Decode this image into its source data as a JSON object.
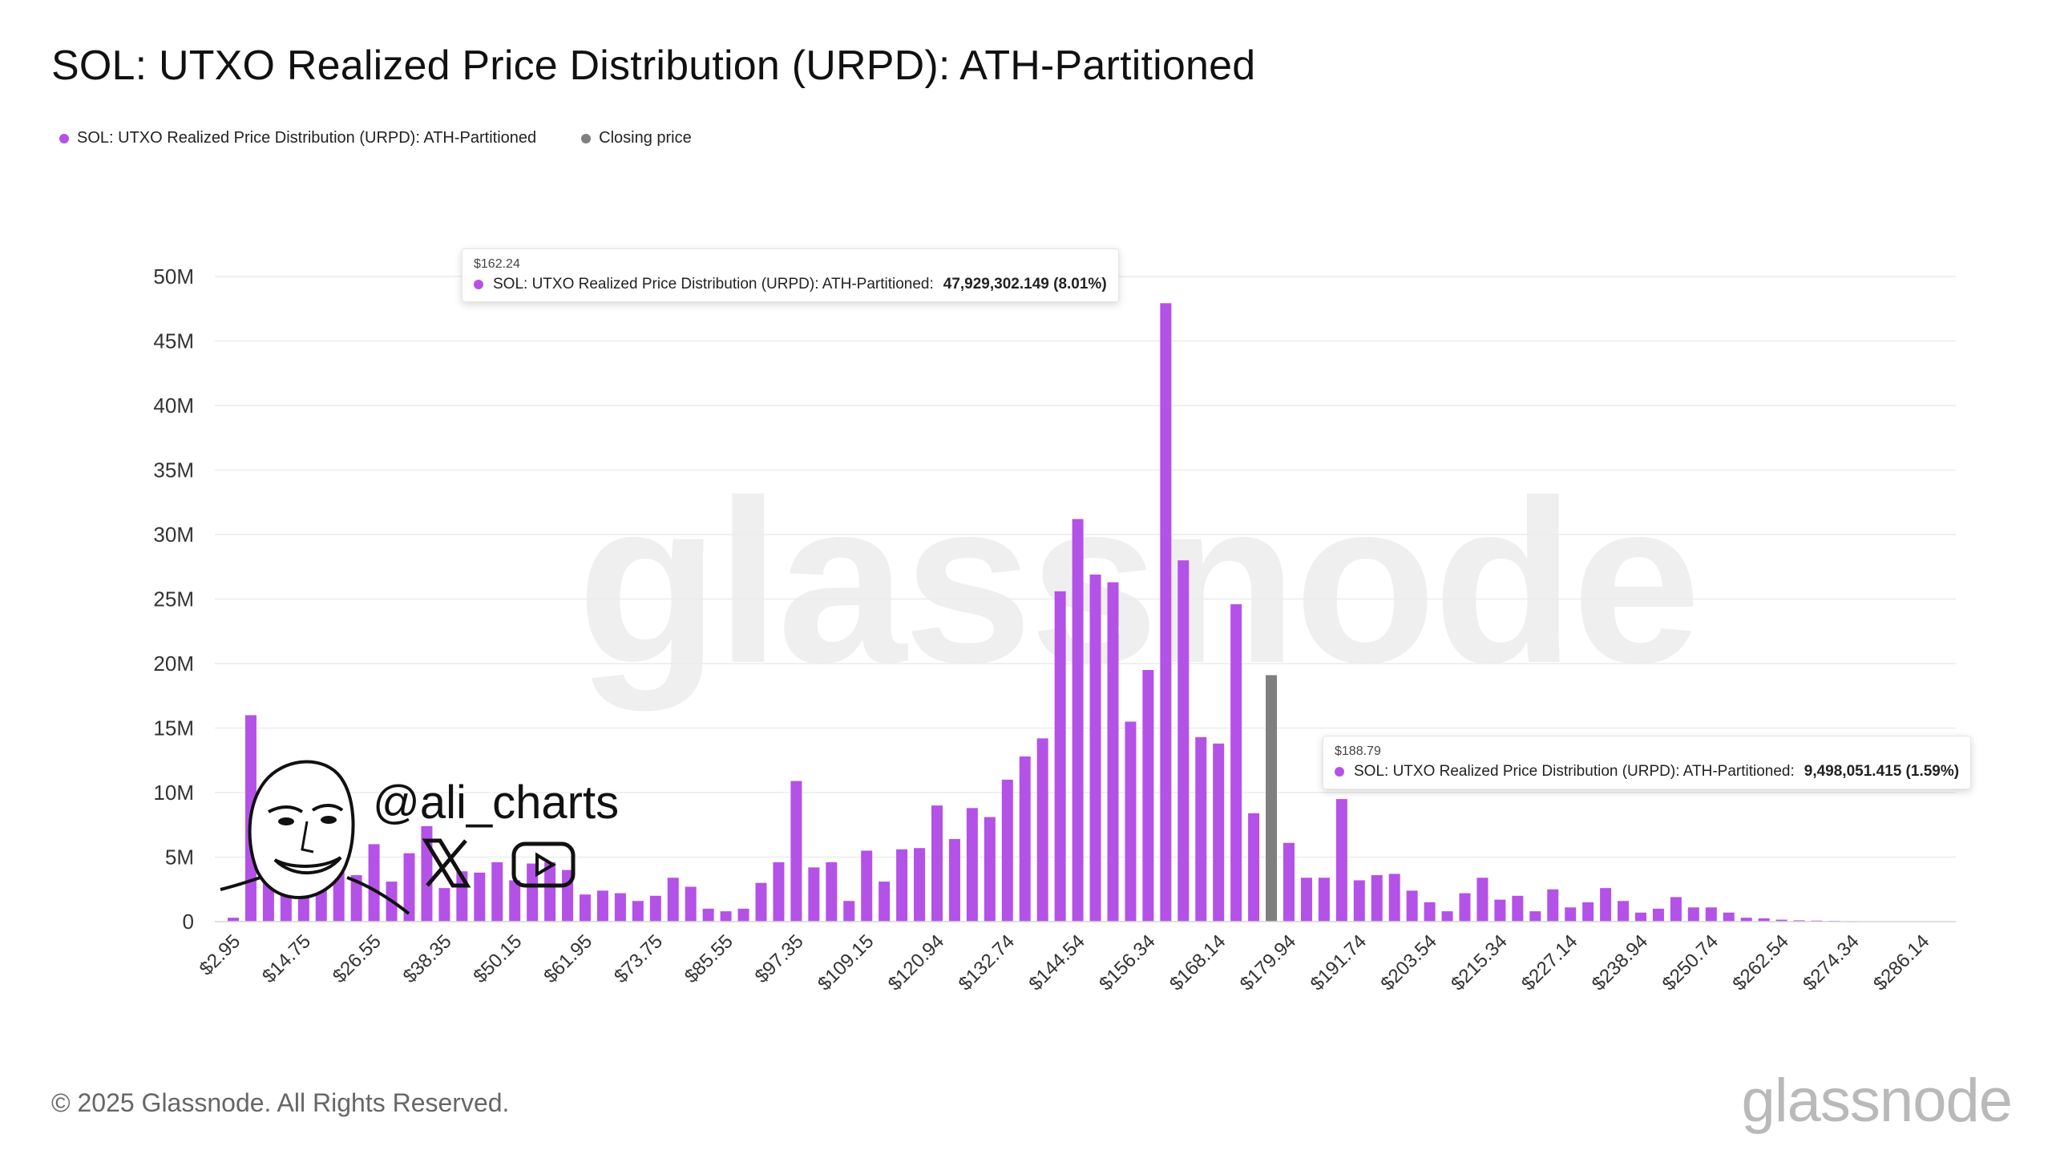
{
  "title": "SOL: UTXO Realized Price Distribution (URPD): ATH-Partitioned",
  "legend": [
    {
      "label": "SOL: UTXO Realized Price Distribution (URPD): ATH-Partitioned",
      "color": "#b452e8"
    },
    {
      "label": "Closing price",
      "color": "#7f7f7f"
    }
  ],
  "tooltips": [
    {
      "price": "$162.24",
      "series": "SOL: UTXO Realized Price Distribution (URPD): ATH-Partitioned:",
      "value": "47,929,302.149 (8.01%)"
    },
    {
      "price": "$188.79",
      "series": "SOL: UTXO Realized Price Distribution (URPD): ATH-Partitioned:",
      "value": "9,498,051.415 (1.59%)"
    }
  ],
  "brand": {
    "handle": "@ali_charts"
  },
  "watermark": "glassnode",
  "footer": {
    "copyright": "© 2025 Glassnode. All Rights Reserved.",
    "logo": "glassnode"
  },
  "chart_data": {
    "type": "bar",
    "title": "SOL: UTXO Realized Price Distribution (URPD): ATH-Partitioned",
    "xlabel": "",
    "ylabel": "",
    "ylim": [
      0,
      50000000
    ],
    "yticks": [
      0,
      5000000,
      10000000,
      15000000,
      20000000,
      25000000,
      30000000,
      35000000,
      40000000,
      45000000,
      50000000
    ],
    "ytick_labels": [
      "0",
      "5M",
      "10M",
      "15M",
      "20M",
      "25M",
      "30M",
      "35M",
      "40M",
      "45M",
      "50M"
    ],
    "xtick_labels": [
      "$2.95",
      "$14.75",
      "$26.55",
      "$38.35",
      "$50.15",
      "$61.95",
      "$73.75",
      "$85.55",
      "$97.35",
      "$109.15",
      "$120.94",
      "$132.74",
      "$144.54",
      "$156.34",
      "$168.14",
      "$179.94",
      "$191.74",
      "$203.54",
      "$215.34",
      "$227.14",
      "$238.94",
      "$250.74",
      "$262.54",
      "$274.34",
      "$286.14"
    ],
    "xtick_every": 4,
    "bin_start": 2.95,
    "bin_width": 2.95,
    "series_color": "#b452e8",
    "closing_color": "#7f7f7f",
    "closing_index": 59,
    "values": [
      300000,
      16000000,
      3800000,
      2800000,
      3000000,
      9500000,
      7800000,
      3600000,
      6000000,
      3100000,
      5300000,
      7400000,
      2600000,
      3900000,
      3800000,
      4600000,
      3200000,
      4500000,
      4600000,
      4000000,
      2100000,
      2400000,
      2200000,
      1600000,
      2000000,
      3400000,
      2700000,
      1000000,
      800000,
      1000000,
      3000000,
      4600000,
      10900000,
      4200000,
      4600000,
      1600000,
      5500000,
      3100000,
      5600000,
      5700000,
      9000000,
      6400000,
      8800000,
      8100000,
      11000000,
      12800000,
      14200000,
      25600000,
      31200000,
      26900000,
      26300000,
      15500000,
      19500000,
      47929302,
      28000000,
      14300000,
      13800000,
      24600000,
      8400000,
      19100000,
      6100000,
      3400000,
      3400000,
      9498051,
      3200000,
      3600000,
      3700000,
      2400000,
      1500000,
      800000,
      2200000,
      3400000,
      1700000,
      2000000,
      800000,
      2500000,
      1100000,
      1500000,
      2600000,
      1600000,
      700000,
      1000000,
      1900000,
      1100000,
      1100000,
      700000,
      300000,
      250000,
      150000,
      100000,
      80000,
      60000,
      20000
    ]
  }
}
